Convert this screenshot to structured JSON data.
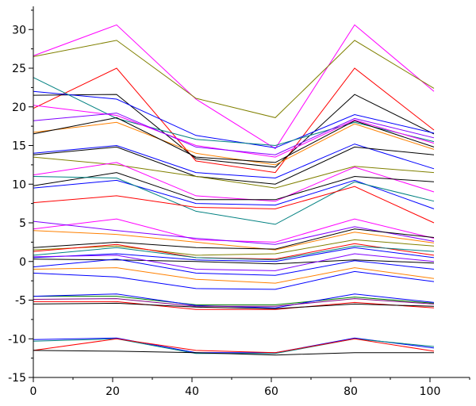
{
  "chart_data": {
    "type": "line",
    "title": "",
    "xlabel": "",
    "ylabel": "",
    "xlim": [
      0,
      110
    ],
    "ylim": [
      -15,
      33
    ],
    "x_ticks": [
      0,
      20,
      40,
      60,
      80,
      100
    ],
    "y_ticks": [
      -15,
      -10,
      -5,
      0,
      5,
      10,
      15,
      20,
      25,
      30
    ],
    "x_tick_labels": [
      "0",
      "20",
      "40",
      "60",
      "80",
      "100"
    ],
    "y_tick_labels": [
      "-15",
      "-10",
      "-5",
      "0",
      "5",
      "10",
      "15",
      "20",
      "25",
      "30"
    ],
    "grid": false,
    "legend": "none",
    "x": [
      0,
      21,
      41,
      61,
      81,
      101
    ],
    "series": [
      {
        "color": "#ff00ff",
        "values": [
          26.6,
          30.6,
          21.0,
          14.6,
          30.6,
          22.0
        ]
      },
      {
        "color": "#808000",
        "values": [
          26.5,
          28.6,
          21.1,
          18.6,
          28.6,
          22.4
        ]
      },
      {
        "color": "#ff0000",
        "values": [
          19.8,
          25.0,
          13.0,
          11.5,
          25.0,
          17.0
        ]
      },
      {
        "color": "#000000",
        "values": [
          21.5,
          21.6,
          13.3,
          12.2,
          21.6,
          16.5
        ]
      },
      {
        "color": "#0000ff",
        "values": [
          22.0,
          21.0,
          16.3,
          14.7,
          19.0,
          16.6
        ]
      },
      {
        "color": "#008080",
        "values": [
          23.8,
          18.5,
          15.8,
          15.0,
          18.0,
          15.5
        ]
      },
      {
        "color": "#ff00ff",
        "values": [
          20.2,
          18.9,
          15.0,
          13.5,
          18.3,
          15.3
        ]
      },
      {
        "color": "#ff8000",
        "values": [
          16.7,
          18.0,
          14.0,
          12.5,
          17.8,
          14.5
        ]
      },
      {
        "color": "#000000",
        "values": [
          16.5,
          18.6,
          13.5,
          12.8,
          18.2,
          14.8
        ]
      },
      {
        "color": "#8000ff",
        "values": [
          18.2,
          19.2,
          14.8,
          13.8,
          18.5,
          16.0
        ]
      },
      {
        "color": "#0000ff",
        "values": [
          14.0,
          15.0,
          11.5,
          10.8,
          15.2,
          12.0
        ]
      },
      {
        "color": "#000000",
        "values": [
          13.8,
          14.8,
          11.0,
          10.0,
          14.8,
          13.8
        ]
      },
      {
        "color": "#808000",
        "values": [
          13.5,
          12.5,
          11.0,
          9.5,
          12.3,
          11.5
        ]
      },
      {
        "color": "#ff00ff",
        "values": [
          11.2,
          12.8,
          8.5,
          7.8,
          12.2,
          9.0
        ]
      },
      {
        "color": "#000000",
        "values": [
          9.8,
          11.5,
          8.0,
          8.0,
          11.0,
          10.3
        ]
      },
      {
        "color": "#0000ff",
        "values": [
          9.5,
          10.5,
          7.5,
          7.3,
          10.5,
          6.8
        ]
      },
      {
        "color": "#008080",
        "values": [
          11.0,
          10.8,
          6.5,
          4.8,
          10.3,
          7.8
        ]
      },
      {
        "color": "#ff0000",
        "values": [
          7.6,
          8.5,
          7.0,
          6.8,
          9.7,
          5.0
        ]
      },
      {
        "color": "#ff00ff",
        "values": [
          4.2,
          5.5,
          2.8,
          2.5,
          5.5,
          3.0
        ]
      },
      {
        "color": "#8000ff",
        "values": [
          5.2,
          4.0,
          3.0,
          2.2,
          4.5,
          2.6
        ]
      },
      {
        "color": "#ff8000",
        "values": [
          4.0,
          3.5,
          2.5,
          1.5,
          3.8,
          2.4
        ]
      },
      {
        "color": "#000000",
        "values": [
          1.8,
          2.5,
          1.8,
          1.6,
          4.2,
          3.1
        ]
      },
      {
        "color": "#808000",
        "values": [
          1.5,
          2.0,
          0.8,
          1.0,
          2.8,
          2.0
        ]
      },
      {
        "color": "#ff0000",
        "values": [
          1.3,
          2.2,
          0.5,
          0.3,
          2.3,
          0.8
        ]
      },
      {
        "color": "#008080",
        "values": [
          0.8,
          1.8,
          0.5,
          0.2,
          2.0,
          1.3
        ]
      },
      {
        "color": "#0000ff",
        "values": [
          0.5,
          1.0,
          0.2,
          0.0,
          1.8,
          0.5
        ]
      },
      {
        "color": "#000000",
        "values": [
          0.3,
          0.2,
          0.0,
          -0.3,
          0.2,
          -0.2
        ]
      },
      {
        "color": "#8000ff",
        "values": [
          0.6,
          0.8,
          -1.0,
          -1.2,
          1.0,
          0.0
        ]
      },
      {
        "color": "#0000ff",
        "values": [
          -0.7,
          0.3,
          -1.5,
          -1.8,
          0.1,
          -1.0
        ]
      },
      {
        "color": "#ff8000",
        "values": [
          -1.0,
          -0.8,
          -2.3,
          -2.8,
          -0.8,
          -2.2
        ]
      },
      {
        "color": "#0000ff",
        "values": [
          -1.5,
          -2.0,
          -3.5,
          -3.6,
          -1.3,
          -2.6
        ]
      },
      {
        "color": "#008000",
        "values": [
          -4.5,
          -4.5,
          -5.6,
          -5.6,
          -4.6,
          -5.4
        ]
      },
      {
        "color": "#0000ff",
        "values": [
          -4.5,
          -4.2,
          -5.7,
          -6.0,
          -4.2,
          -5.3
        ]
      },
      {
        "color": "#800080",
        "values": [
          -4.9,
          -4.8,
          -5.8,
          -5.8,
          -4.8,
          -5.5
        ]
      },
      {
        "color": "#ff0000",
        "values": [
          -5.2,
          -5.2,
          -6.2,
          -6.2,
          -5.3,
          -6.0
        ]
      },
      {
        "color": "#000000",
        "values": [
          -5.5,
          -5.4,
          -5.9,
          -6.1,
          -5.5,
          -5.8
        ]
      },
      {
        "color": "#0000ff",
        "values": [
          -10.1,
          -9.9,
          -11.8,
          -11.8,
          -9.9,
          -11.2
        ]
      },
      {
        "color": "#008080",
        "values": [
          -10.3,
          -10.0,
          -11.9,
          -11.9,
          -10.0,
          -11.0
        ]
      },
      {
        "color": "#ff0000",
        "values": [
          -11.5,
          -10.0,
          -11.5,
          -11.8,
          -10.0,
          -11.6
        ]
      },
      {
        "color": "#000000",
        "values": [
          -11.5,
          -11.6,
          -11.8,
          -12.1,
          -11.8,
          -11.8
        ]
      }
    ]
  }
}
